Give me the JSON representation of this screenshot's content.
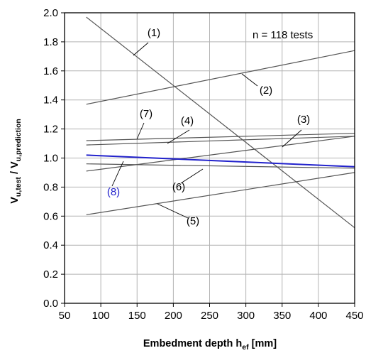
{
  "chart_data": {
    "type": "line",
    "xlabel_main": "Embedment depth h",
    "xlabel_sub": "ef",
    "xlabel_unit": " [mm]",
    "ylabel_v1": "V",
    "ylabel_s1": "u,test",
    "ylabel_sep": " / V",
    "ylabel_s2": "u,prediction",
    "xlim": [
      50,
      450
    ],
    "ylim": [
      0.0,
      2.0
    ],
    "xticks": [
      "50",
      "100",
      "150",
      "200",
      "250",
      "300",
      "350",
      "400",
      "450"
    ],
    "yticks": [
      "0.0",
      "0.2",
      "0.4",
      "0.6",
      "0.8",
      "1.0",
      "1.2",
      "1.4",
      "1.6",
      "1.8",
      "2.0"
    ],
    "grid": true,
    "annotation": "n = 118 tests",
    "series": [
      {
        "name": "(1)",
        "color": "#555555",
        "x": [
          80,
          450
        ],
        "y": [
          1.97,
          0.52
        ]
      },
      {
        "name": "(2)",
        "color": "#555555",
        "x": [
          80,
          450
        ],
        "y": [
          1.37,
          1.74
        ]
      },
      {
        "name": "(3)",
        "color": "#555555",
        "x": [
          80,
          450
        ],
        "y": [
          0.91,
          1.15
        ]
      },
      {
        "name": "(4)",
        "color": "#555555",
        "x": [
          80,
          450
        ],
        "y": [
          1.09,
          1.15
        ]
      },
      {
        "name": "(5)",
        "color": "#555555",
        "x": [
          80,
          450
        ],
        "y": [
          0.61,
          0.9
        ]
      },
      {
        "name": "(6)",
        "color": "#555555",
        "x": [
          80,
          450
        ],
        "y": [
          0.96,
          0.93
        ]
      },
      {
        "name": "(7)",
        "color": "#555555",
        "x": [
          80,
          450
        ],
        "y": [
          1.12,
          1.17
        ]
      },
      {
        "name": "(8)",
        "color": "#2222cc",
        "x": [
          80,
          450
        ],
        "y": [
          1.02,
          0.94
        ]
      }
    ],
    "labels": [
      {
        "text": "(1)",
        "color": "#000000"
      },
      {
        "text": "(2)",
        "color": "#000000"
      },
      {
        "text": "(3)",
        "color": "#000000"
      },
      {
        "text": "(4)",
        "color": "#000000"
      },
      {
        "text": "(5)",
        "color": "#000000"
      },
      {
        "text": "(6)",
        "color": "#000000"
      },
      {
        "text": "(7)",
        "color": "#000000"
      },
      {
        "text": "(8)",
        "color": "#2222cc"
      }
    ]
  }
}
